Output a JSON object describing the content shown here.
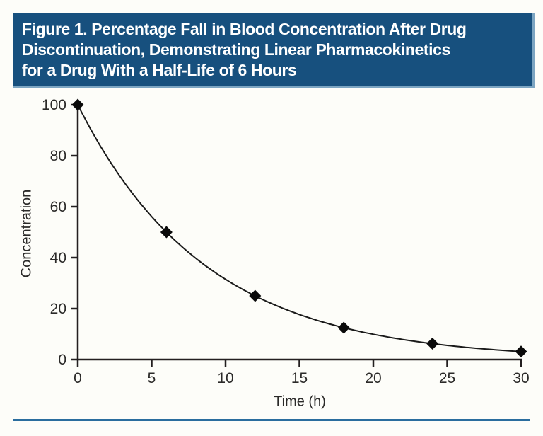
{
  "header": {
    "title_lines": [
      "Figure 1. Percentage Fall in Blood Concentration After Drug",
      "Discontinuation, Demonstrating Linear Pharmacokinetics",
      "for a Drug With a Half-Life of 6 Hours"
    ],
    "background": "#17507e",
    "edge_color": "#7ca5c2",
    "text_color": "#ffffff"
  },
  "footer_rule": {
    "color": "#2a6d9e"
  },
  "chart_data": {
    "type": "line",
    "title": "",
    "xlabel": "Time (h)",
    "ylabel": "Concentration",
    "x": [
      0,
      6,
      12,
      18,
      24,
      30
    ],
    "values": [
      100,
      50,
      25,
      12.5,
      6.25,
      3.125
    ],
    "xlim": [
      0,
      30
    ],
    "ylim": [
      0,
      100
    ],
    "x_ticks": [
      0,
      5,
      10,
      15,
      20,
      25,
      30
    ],
    "y_ticks": [
      0,
      20,
      40,
      60,
      80,
      100
    ],
    "interpolation": "exponential",
    "marker": "diamond",
    "line_color": "#1a1a1a",
    "marker_color": "#0a0a0a",
    "axis_color": "#231f20",
    "tick_label_color": "#2b2a29",
    "grid": false,
    "legend": "none"
  }
}
